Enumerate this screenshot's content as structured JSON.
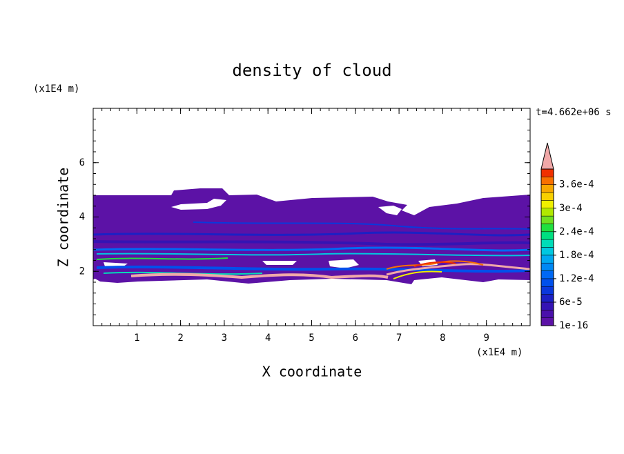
{
  "chart_data": {
    "type": "contour",
    "title": "density of cloud",
    "xlabel": "X coordinate",
    "ylabel": "Z coordinate",
    "xunit": "(x1E4 m)",
    "yunit": "(x1E4 m)",
    "time_label": "t=4.662e+06 s",
    "xlim": [
      0,
      10
    ],
    "ylim": [
      0,
      8
    ],
    "xticks": [
      1,
      2,
      3,
      4,
      5,
      6,
      7,
      8,
      9
    ],
    "yticks": [
      2,
      4,
      6
    ],
    "colorbar": {
      "levels": [
        1e-16,
        2e-05,
        4e-05,
        6e-05,
        8e-05,
        0.0001,
        0.00012,
        0.00014,
        0.00016,
        0.00018,
        0.0002,
        0.00022,
        0.00024,
        0.00026,
        0.00028,
        0.0003,
        0.00032,
        0.00034,
        0.00036,
        0.00038,
        0.0004
      ],
      "colors": [
        "#5c12a6",
        "#4a10aa",
        "#3414b4",
        "#1c20c4",
        "#0a38dc",
        "#0050ec",
        "#0068f4",
        "#0088f4",
        "#00a8f0",
        "#00c8e0",
        "#00dcb8",
        "#00e080",
        "#20e040",
        "#70e020",
        "#b0e800",
        "#f0f000",
        "#f8d000",
        "#f8a800",
        "#f87000",
        "#f03000"
      ],
      "extend_color": "#f0a8a8",
      "ticks": [
        {
          "value": 1e-16,
          "label": "1e-16"
        },
        {
          "value": 6e-05,
          "label": "6e-5"
        },
        {
          "value": 0.00012,
          "label": "1.2e-4"
        },
        {
          "value": 0.00018,
          "label": "1.8e-4"
        },
        {
          "value": 0.00024,
          "label": "2.4e-4"
        },
        {
          "value": 0.0003,
          "label": "3e-4"
        },
        {
          "value": 0.00036,
          "label": "3.6e-4"
        }
      ]
    }
  }
}
